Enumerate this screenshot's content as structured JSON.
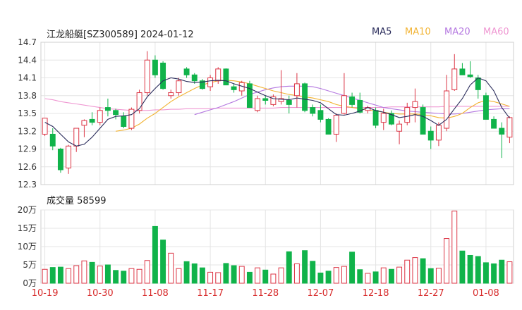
{
  "header": {
    "title": "江龙船艇[SZ300589] 2024-01-12",
    "legend": [
      {
        "label": "MA5",
        "color": "#2b2d5c"
      },
      {
        "label": "MA10",
        "color": "#f2b332"
      },
      {
        "label": "MA20",
        "color": "#b477e0"
      },
      {
        "label": "MA60",
        "color": "#ef97d2"
      }
    ]
  },
  "volume_label": "成交量 58599",
  "colors": {
    "up": "#dc3545",
    "down": "#10b34a",
    "grid": "#e4e4e4",
    "axis": "#333333",
    "xtick": "#d72b2b"
  },
  "chart_data": [
    {
      "type": "candlestick",
      "title": "江龙船艇[SZ300589] 2024-01-12",
      "ylim": [
        12.3,
        14.7
      ],
      "yticks": [
        "14.7",
        "14.4",
        "14.1",
        "13.8",
        "13.5",
        "13.2",
        "12.9",
        "12.6",
        "12.3"
      ],
      "xticks": [
        {
          "label": "10-19",
          "index": 0
        },
        {
          "label": "10-30",
          "index": 7
        },
        {
          "label": "11-08",
          "index": 14
        },
        {
          "label": "11-17",
          "index": 21
        },
        {
          "label": "11-28",
          "index": 28
        },
        {
          "label": "12-07",
          "index": 35
        },
        {
          "label": "12-18",
          "index": 42
        },
        {
          "label": "12-27",
          "index": 49
        },
        {
          "label": "01-08",
          "index": 56
        }
      ],
      "candles": [
        [
          13.15,
          13.42,
          13.12,
          13.42
        ],
        [
          13.15,
          13.25,
          12.88,
          12.95
        ],
        [
          12.9,
          12.92,
          12.5,
          12.55
        ],
        [
          12.58,
          12.97,
          12.48,
          12.95
        ],
        [
          12.95,
          13.25,
          12.85,
          13.25
        ],
        [
          13.3,
          13.4,
          13.1,
          13.38
        ],
        [
          13.4,
          13.52,
          13.3,
          13.35
        ],
        [
          13.35,
          13.6,
          13.3,
          13.55
        ],
        [
          13.6,
          13.75,
          13.45,
          13.55
        ],
        [
          13.55,
          13.58,
          13.4,
          13.48
        ],
        [
          13.45,
          13.52,
          13.25,
          13.28
        ],
        [
          13.25,
          13.6,
          13.22,
          13.57
        ],
        [
          13.55,
          13.9,
          13.5,
          13.85
        ],
        [
          13.85,
          14.55,
          13.8,
          14.4
        ],
        [
          14.4,
          14.48,
          14.1,
          14.15
        ],
        [
          14.35,
          14.38,
          13.9,
          13.92
        ],
        [
          13.8,
          13.9,
          13.75,
          13.85
        ],
        [
          13.85,
          14.1,
          13.8,
          14.05
        ],
        [
          14.25,
          14.28,
          14.1,
          14.15
        ],
        [
          14.15,
          14.18,
          14.0,
          14.05
        ],
        [
          14.05,
          14.08,
          13.9,
          13.92
        ],
        [
          13.95,
          14.15,
          13.88,
          14.1
        ],
        [
          14.05,
          14.28,
          14.0,
          14.25
        ],
        [
          14.25,
          14.26,
          13.98,
          13.98
        ],
        [
          13.95,
          14.0,
          13.85,
          13.9
        ],
        [
          13.88,
          14.05,
          13.8,
          14.02
        ],
        [
          14.0,
          14.05,
          13.6,
          13.6
        ],
        [
          13.55,
          13.8,
          13.52,
          13.75
        ],
        [
          13.75,
          13.8,
          13.65,
          13.72
        ],
        [
          13.65,
          13.82,
          13.62,
          13.78
        ],
        [
          13.7,
          14.23,
          13.65,
          13.75
        ],
        [
          13.72,
          13.8,
          13.5,
          13.65
        ],
        [
          13.8,
          14.18,
          13.6,
          14.0
        ],
        [
          14.0,
          14.02,
          13.52,
          13.55
        ],
        [
          13.6,
          13.65,
          13.45,
          13.5
        ],
        [
          13.55,
          13.65,
          13.35,
          13.4
        ],
        [
          13.4,
          13.42,
          13.15,
          13.15
        ],
        [
          13.15,
          13.5,
          13.02,
          13.47
        ],
        [
          13.5,
          14.18,
          13.48,
          13.8
        ],
        [
          13.78,
          13.85,
          13.6,
          13.65
        ],
        [
          13.72,
          13.85,
          13.5,
          13.52
        ],
        [
          13.55,
          13.63,
          13.5,
          13.6
        ],
        [
          13.55,
          13.6,
          13.25,
          13.3
        ],
        [
          13.35,
          13.58,
          13.22,
          13.5
        ],
        [
          13.5,
          13.55,
          13.3,
          13.32
        ],
        [
          13.2,
          13.38,
          12.98,
          13.32
        ],
        [
          13.35,
          13.68,
          13.3,
          13.6
        ],
        [
          13.6,
          13.92,
          13.35,
          13.7
        ],
        [
          13.6,
          13.65,
          13.15,
          13.15
        ],
        [
          13.2,
          13.28,
          12.9,
          13.05
        ],
        [
          13.05,
          13.35,
          12.95,
          13.3
        ],
        [
          13.25,
          14.15,
          13.2,
          13.88
        ],
        [
          13.9,
          14.5,
          13.88,
          14.25
        ],
        [
          14.25,
          14.35,
          14.15,
          14.15
        ],
        [
          14.15,
          14.38,
          14.1,
          14.12
        ],
        [
          14.1,
          14.15,
          13.75,
          13.9
        ],
        [
          13.8,
          13.85,
          13.4,
          13.4
        ],
        [
          13.4,
          13.45,
          13.25,
          13.25
        ],
        [
          13.25,
          13.35,
          12.75,
          13.15
        ],
        [
          13.1,
          13.45,
          13.0,
          13.43
        ]
      ],
      "ma5": [
        13.35,
        13.28,
        13.15,
        13.02,
        12.95,
        12.98,
        13.1,
        13.25,
        13.4,
        13.45,
        13.46,
        13.48,
        13.58,
        13.78,
        13.92,
        14.05,
        14.1,
        14.08,
        14.04,
        14.02,
        14.03,
        14.05,
        14.06,
        14.05,
        14.0,
        13.96,
        13.92,
        13.86,
        13.8,
        13.75,
        13.74,
        13.73,
        13.76,
        13.74,
        13.72,
        13.68,
        13.58,
        13.48,
        13.47,
        13.5,
        13.54,
        13.6,
        13.55,
        13.52,
        13.48,
        13.43,
        13.45,
        13.48,
        13.45,
        13.38,
        13.3,
        13.4,
        13.58,
        13.75,
        13.98,
        14.1,
        14.05,
        13.88,
        13.6,
        13.42
      ],
      "ma10": [
        null,
        null,
        null,
        null,
        null,
        null,
        null,
        null,
        null,
        13.2,
        13.22,
        13.25,
        13.32,
        13.42,
        13.5,
        13.6,
        13.7,
        13.78,
        13.85,
        13.92,
        13.98,
        14.02,
        14.05,
        14.06,
        14.05,
        14.03,
        14.0,
        13.96,
        13.92,
        13.88,
        13.85,
        13.82,
        13.8,
        13.78,
        13.76,
        13.73,
        13.7,
        13.65,
        13.62,
        13.6,
        13.58,
        13.56,
        13.54,
        13.52,
        13.5,
        13.49,
        13.49,
        13.49,
        13.48,
        13.46,
        13.43,
        13.42,
        13.45,
        13.5,
        13.6,
        13.68,
        13.72,
        13.7,
        13.66,
        13.62
      ],
      "ma20": [
        null,
        null,
        null,
        null,
        null,
        null,
        null,
        null,
        null,
        null,
        null,
        null,
        null,
        null,
        null,
        null,
        null,
        null,
        null,
        13.48,
        13.52,
        13.56,
        13.6,
        13.65,
        13.7,
        13.76,
        13.82,
        13.86,
        13.9,
        13.93,
        13.95,
        13.96,
        13.96,
        13.96,
        13.95,
        13.92,
        13.88,
        13.84,
        13.8,
        13.76,
        13.72,
        13.68,
        13.64,
        13.6,
        13.58,
        13.56,
        13.54,
        13.53,
        13.52,
        13.51,
        13.5,
        13.49,
        13.49,
        13.5,
        13.52,
        13.54,
        13.56,
        13.57,
        13.58,
        13.58
      ],
      "ma60": [
        13.75,
        13.73,
        13.7,
        13.68,
        13.66,
        13.64,
        13.62,
        13.6,
        13.58,
        13.57,
        13.56,
        13.55,
        13.55,
        13.55,
        13.56,
        13.56,
        13.57,
        13.57,
        13.58,
        13.58,
        13.58,
        13.58,
        13.59,
        13.59,
        13.59,
        13.59,
        13.59,
        13.59,
        13.59,
        13.59,
        13.6,
        13.6,
        13.6,
        13.6,
        13.6,
        13.6,
        13.6,
        13.6,
        13.6,
        13.6,
        13.6,
        13.6,
        13.6,
        13.6,
        13.61,
        13.61,
        13.61,
        13.61,
        13.61,
        13.61,
        13.61,
        13.62,
        13.62,
        13.62,
        13.62,
        13.62,
        13.62,
        13.62,
        13.62,
        13.62
      ]
    },
    {
      "type": "bar",
      "title": "成交量 58599",
      "ylim": [
        0,
        200000
      ],
      "yticks": [
        {
          "label": "20万",
          "value": 200000
        },
        {
          "label": "15万",
          "value": 150000
        },
        {
          "label": "10万",
          "value": 100000
        },
        {
          "label": "5万",
          "value": 50000
        },
        {
          "label": "0万",
          "value": 0
        }
      ],
      "values": [
        38000,
        43000,
        44000,
        40000,
        48000,
        61000,
        57000,
        47000,
        50000,
        35000,
        33000,
        40000,
        38000,
        62000,
        155000,
        118000,
        82000,
        40000,
        59000,
        53000,
        42000,
        30000,
        29000,
        54000,
        48000,
        46000,
        30000,
        42000,
        36000,
        25000,
        42000,
        86000,
        53000,
        89000,
        60000,
        28000,
        33000,
        43000,
        46000,
        85000,
        37000,
        27000,
        31000,
        42000,
        38000,
        44000,
        63000,
        70000,
        67000,
        40000,
        41000,
        122000,
        197000,
        88000,
        76000,
        73000,
        56000,
        53000,
        63000,
        58599
      ]
    }
  ]
}
